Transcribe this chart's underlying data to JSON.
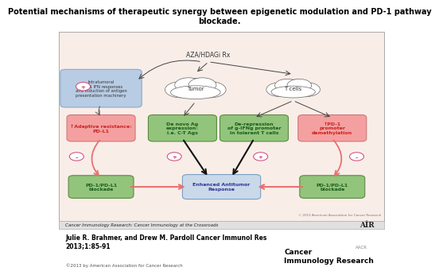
{
  "title": "Potential mechanisms of therapeutic synergy between epigenetic modulation and PD-1 pathway\nblockade.",
  "title_fontsize": 7.0,
  "diagram_bg": "#f9ede8",
  "outer_bg": "#ffffff",
  "footer_text": "Cancer Immunology Research: Cancer Immunology at the Crossroads",
  "author_text": "Julie R. Brahmer, and Drew M. Pardoll Cancer Immunol Res\n2013;1:85-91",
  "copyright_text": "©2013 by American Association for Cancer Research",
  "copyright_diagram": "© 2013 American Association for Cancer Research",
  "aza_text": "AZA/HDAGi Rx",
  "tumor_text": "Tumor",
  "tcells_text": "T cells",
  "ifn_text": "Intratumoral\ntype 1 IFN responses\nand induction of antigen\npresentation machinery",
  "adaptive_text": "↑Adaptive resistance:\nPD-L1",
  "denovo_text": "De novo Ag\nexpression:\ni.e. C-T Ags",
  "derepression_text": "De-repression\nof g-IFNg promoter\nin tolerant T cells",
  "pd1meth_text": "↑PD-1\npromoter\ndemethylation",
  "pd1left_text": "PD-1/PD-L1\nblockade",
  "enhanced_text": "Enhanced Antitumor\nResponse",
  "pd1right_text": "PD-1/PD-L1\nblockade",
  "color_blue_box": "#b8cce4",
  "color_red_box": "#f4a0a0",
  "color_green_box": "#92c47c",
  "color_light_blue": "#c9d9ea",
  "color_arrow_pink": "#e87070",
  "color_arrow_black": "#1a1a1a",
  "color_symbol": "#cc4477",
  "journal_text": "Cancer\nImmunology Research",
  "aacr_text": "AACR"
}
